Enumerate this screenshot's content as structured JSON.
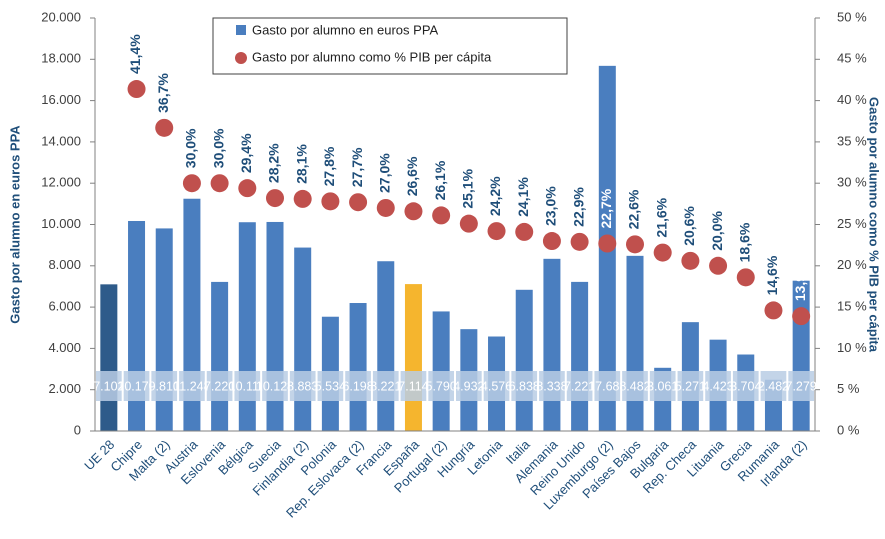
{
  "chart_data": {
    "type": "bar",
    "categories": [
      "UE 28",
      "Chipre",
      "Malta (2)",
      "Austria",
      "Eslovenia",
      "Bélgica",
      "Suecia",
      "Finlandia (2)",
      "Polonia",
      "Rep. Eslovaca (2)",
      "Francia",
      "España",
      "Portugal (2)",
      "Hungría",
      "Letonia",
      "Italia",
      "Alemania",
      "Reino Unido",
      "Luxemburgo (2)",
      "Países Bajos",
      "Bulgaria",
      "Rep. Checa",
      "Lituania",
      "Grecia",
      "Rumania",
      "Irlanda (2)"
    ],
    "series": [
      {
        "name": "Gasto por alumno en euros PPA",
        "type": "bar",
        "color": "#4a7ebf",
        "colors": [
          "#2e5b8a",
          "#4a7ebf",
          "#4a7ebf",
          "#4a7ebf",
          "#4a7ebf",
          "#4a7ebf",
          "#4a7ebf",
          "#4a7ebf",
          "#4a7ebf",
          "#4a7ebf",
          "#4a7ebf",
          "#f5b52e",
          "#4a7ebf",
          "#4a7ebf",
          "#4a7ebf",
          "#4a7ebf",
          "#4a7ebf",
          "#4a7ebf",
          "#4a7ebf",
          "#4a7ebf",
          "#4a7ebf",
          "#4a7ebf",
          "#4a7ebf",
          "#4a7ebf",
          "#4a7ebf",
          "#4a7ebf"
        ],
        "values": [
          7102,
          10170,
          9810,
          11248,
          7220,
          10110,
          10123,
          8883,
          5534,
          6198,
          8221,
          7114,
          5790,
          4932,
          4576,
          6838,
          8338,
          7221,
          17683,
          8482,
          3061,
          5271,
          4423,
          3704,
          2482,
          7279
        ],
        "value_labels": [
          "7.102",
          "10.170",
          "9.810",
          "11.248",
          "7.220",
          "10.110",
          "10.123",
          "8.883",
          "5.534",
          "6.198",
          "8.221",
          "7.114",
          "5.790",
          "4.932",
          "4.576",
          "6.838",
          "8.338",
          "7.221",
          "17.683",
          "8.482",
          "3.061",
          "5.271",
          "4.423",
          "3.704",
          "2.482",
          "7.279"
        ]
      },
      {
        "name": "Gasto por alumno como % PIB per cápita",
        "type": "scatter",
        "axis": "y2",
        "color": "#c0504d",
        "values": [
          null,
          41.4,
          36.7,
          30.0,
          30.0,
          29.4,
          28.2,
          28.1,
          27.8,
          27.7,
          27.0,
          26.6,
          26.1,
          25.1,
          24.2,
          24.1,
          23.0,
          22.9,
          22.7,
          22.6,
          21.6,
          20.6,
          20.0,
          18.6,
          14.6,
          13.9
        ],
        "value_labels": [
          null,
          "41,4%",
          "36,7%",
          "30,0%",
          "30,0%",
          "29,4%",
          "28,2%",
          "28,1%",
          "27,8%",
          "27,7%",
          "27,0%",
          "26,6%",
          "26,1%",
          "25,1%",
          "24,2%",
          "24,1%",
          "23,0%",
          "22,9%",
          "22,7%",
          "22,6%",
          "21,6%",
          "20,6%",
          "20,0%",
          "18,6%",
          "14,6%",
          "13,9%"
        ]
      }
    ],
    "ylabel": "Gasto  por alumno en euros PPA",
    "y2label": "Gasto por alumno como % PIB per cápita",
    "ylim": [
      0,
      20000
    ],
    "yticks": [
      0,
      {
        "value": 2000,
        "label": "2.000"
      },
      {
        "value": 4000,
        "label": "4.000"
      },
      {
        "value": 6000,
        "label": "6.000"
      },
      {
        "value": 8000,
        "label": "8.000"
      },
      {
        "value": 10000,
        "label": "10.000"
      },
      {
        "value": 12000,
        "label": "12.000"
      },
      {
        "value": 14000,
        "label": "14.000"
      },
      {
        "value": 16000,
        "label": "16.000"
      },
      {
        "value": 18000,
        "label": "18.000"
      },
      {
        "value": 20000,
        "label": "20.000"
      }
    ],
    "y2lim": [
      0,
      50
    ],
    "y2ticks": [
      {
        "value": 0,
        "label": "0 %"
      },
      {
        "value": 5,
        "label": "5 %"
      },
      {
        "value": 10,
        "label": "10 %"
      },
      {
        "value": 15,
        "label": "15 %"
      },
      {
        "value": 20,
        "label": "20 %"
      },
      {
        "value": 25,
        "label": "25 %"
      },
      {
        "value": 30,
        "label": "30 %"
      },
      {
        "value": 35,
        "label": "35 %"
      },
      {
        "value": 40,
        "label": "40 %"
      },
      {
        "value": 45,
        "label": "45 %"
      },
      {
        "value": 50,
        "label": "50 %"
      }
    ],
    "legend": "top"
  }
}
